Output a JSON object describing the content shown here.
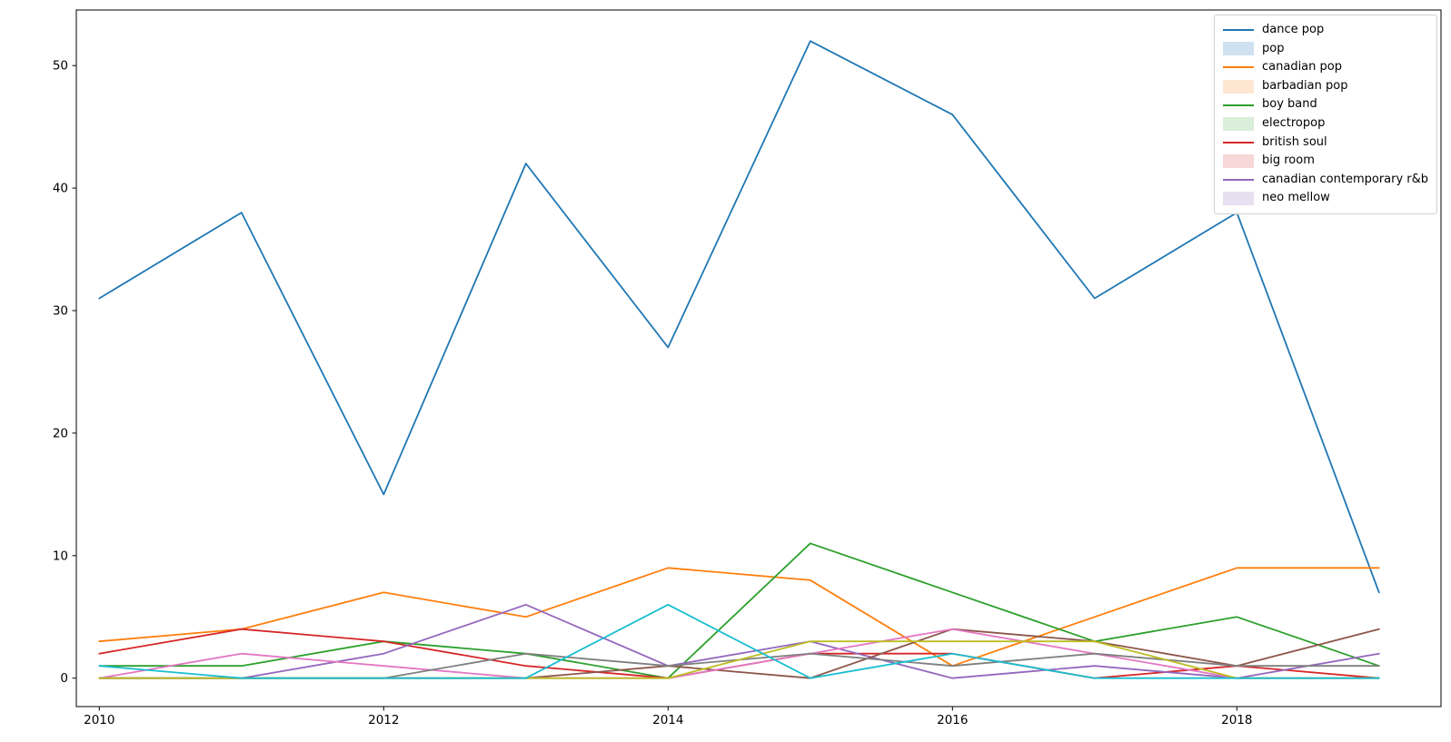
{
  "chart_data": {
    "type": "line",
    "title": "",
    "xlabel": "",
    "ylabel": "",
    "x": [
      2010,
      2011,
      2012,
      2013,
      2014,
      2015,
      2016,
      2017,
      2018,
      2019
    ],
    "xticks": [
      "2010",
      "2012",
      "2014",
      "2016",
      "2018"
    ],
    "xtick_values": [
      2010,
      2012,
      2014,
      2016,
      2018
    ],
    "yticks": [
      "0",
      "10",
      "20",
      "30",
      "40",
      "50"
    ],
    "ytick_values": [
      0,
      10,
      20,
      30,
      40,
      50
    ],
    "xlim": [
      2009.84,
      2019.44
    ],
    "ylim": [
      -2.4,
      54.5
    ],
    "grid": false,
    "legend_position": "upper right",
    "series": [
      {
        "name": "dance pop",
        "color": "#1f77b4",
        "draw_order": 0,
        "legend_handle": "line",
        "legend_color": "#1f77b4",
        "values": [
          31,
          38,
          15,
          42,
          27,
          52,
          46,
          31,
          38,
          7
        ]
      },
      {
        "name": "pop",
        "color": "#8c564b",
        "draw_order": 5,
        "legend_handle": "patch",
        "legend_color": "#cfe0f1",
        "values": [
          0,
          0,
          0,
          0,
          1,
          0,
          4,
          3,
          1,
          4
        ]
      },
      {
        "name": "canadian pop",
        "color": "#ff7f0e",
        "draw_order": 1,
        "legend_handle": "line",
        "legend_color": "#ff7f0e",
        "values": [
          3,
          4,
          7,
          5,
          9,
          8,
          1,
          5,
          9,
          9
        ]
      },
      {
        "name": "barbadian pop",
        "color": "#e377c2",
        "draw_order": 6,
        "legend_handle": "patch",
        "legend_color": "#fde7d2",
        "values": [
          0,
          2,
          1,
          0,
          0,
          2,
          4,
          2,
          0,
          0
        ]
      },
      {
        "name": "boy band",
        "color": "#2ca02c",
        "draw_order": 2,
        "legend_handle": "line",
        "legend_color": "#2ca02c",
        "values": [
          1,
          1,
          3,
          2,
          0,
          11,
          7,
          3,
          5,
          1
        ]
      },
      {
        "name": "electropop",
        "color": "#7f7f7f",
        "draw_order": 7,
        "legend_handle": "patch",
        "legend_color": "#daeeda",
        "values": [
          0,
          0,
          0,
          2,
          1,
          2,
          1,
          2,
          1,
          1
        ]
      },
      {
        "name": "british soul",
        "color": "#d62728",
        "draw_order": 3,
        "legend_handle": "line",
        "legend_color": "#d62728",
        "values": [
          2,
          4,
          3,
          1,
          0,
          2,
          2,
          0,
          1,
          0
        ]
      },
      {
        "name": "big room",
        "color": "#bcbd22",
        "draw_order": 8,
        "legend_handle": "patch",
        "legend_color": "#f7d7d7",
        "values": [
          0,
          0,
          0,
          0,
          0,
          3,
          3,
          3,
          0,
          0
        ]
      },
      {
        "name": "canadian contemporary r&b",
        "color": "#9467bd",
        "draw_order": 4,
        "legend_handle": "line",
        "legend_color": "#9467bd",
        "values": [
          0,
          0,
          2,
          6,
          1,
          3,
          0,
          1,
          0,
          2
        ]
      },
      {
        "name": "neo mellow",
        "color": "#17becf",
        "draw_order": 9,
        "legend_handle": "patch",
        "legend_color": "#e7e0f1",
        "values": [
          1,
          0,
          0,
          0,
          6,
          0,
          2,
          0,
          0,
          0
        ]
      }
    ]
  }
}
